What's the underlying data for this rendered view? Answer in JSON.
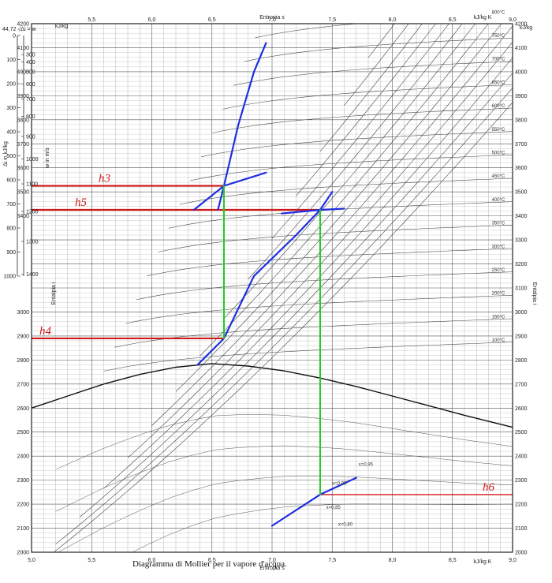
{
  "chart_data": {
    "type": "line",
    "title": "Diagramma di Mollier per il vapore d'acqua.",
    "xlabel": "Entropia s",
    "xunit": "kJ/kg K",
    "ylabel": "Entalpia i",
    "yunit": "kJ/kg",
    "left_scale_label": "Δi in kJ/kg",
    "left_scale_top": "44,72 √Δi = w",
    "velocity_label": "w in m/s",
    "xlim": [
      5.0,
      9.0
    ],
    "ylim": [
      2000,
      4200
    ],
    "x_ticks": [
      "5,0",
      "5,5",
      "6,0",
      "6,5",
      "7,0",
      "7,5",
      "8,0",
      "8,5",
      "9,0"
    ],
    "x_ticks_top": [
      "5,5",
      "6,0",
      "6,5",
      "7,0",
      "7,5",
      "8,0",
      "8,5",
      "9,0"
    ],
    "y_ticks": [
      "2000",
      "2100",
      "2200",
      "2300",
      "2400",
      "2500",
      "2600",
      "2700",
      "2800",
      "2900",
      "3000",
      "3100",
      "3200",
      "3300",
      "3400",
      "3500",
      "3600",
      "3700",
      "3800",
      "3900",
      "4000",
      "4100",
      "4200"
    ],
    "delta_i_ticks": [
      "0",
      "100",
      "200",
      "300",
      "400",
      "500",
      "600",
      "700",
      "800",
      "900",
      "1000"
    ],
    "velocity_ticks": [
      "300",
      "400",
      "500",
      "600",
      "700",
      "800",
      "900",
      "1000",
      "1100",
      "1200",
      "1300",
      "1400"
    ],
    "isotherms": [
      "100°C",
      "150°C",
      "200°C",
      "250°C",
      "300°C",
      "350°C",
      "400°C",
      "450°C",
      "500°C",
      "550°C",
      "600°C",
      "650°C",
      "700°C",
      "750°C",
      "800°C"
    ],
    "quality_lines": [
      "x=0,80",
      "x=0,85",
      "x=0,90",
      "x=0,95"
    ],
    "annotations": [
      {
        "label": "h3",
        "y": 3525
      },
      {
        "label": "h5",
        "y": 3425
      },
      {
        "label": "h4",
        "y": 2890
      },
      {
        "label": "h6",
        "y": 2240
      }
    ],
    "series": [
      {
        "color": "#1f2fe0",
        "points": [
          [
            6.55,
            3425
          ],
          [
            6.6,
            3525
          ],
          [
            6.72,
            3780
          ],
          [
            6.85,
            4000
          ],
          [
            6.95,
            4120
          ]
        ]
      },
      {
        "color": "#1f2fe0",
        "points": [
          [
            6.35,
            3425
          ],
          [
            6.6,
            3525
          ],
          [
            6.95,
            3580
          ]
        ]
      },
      {
        "color": "#1f2fe0",
        "points": [
          [
            6.38,
            2780
          ],
          [
            6.6,
            2890
          ],
          [
            6.85,
            3150
          ],
          [
            7.2,
            3320
          ],
          [
            7.4,
            3425
          ],
          [
            7.5,
            3500
          ]
        ]
      },
      {
        "color": "#1f2fe0",
        "points": [
          [
            7.08,
            3410
          ],
          [
            7.4,
            3425
          ],
          [
            7.6,
            3430
          ]
        ]
      },
      {
        "color": "#1f2fe0",
        "points": [
          [
            7.0,
            2110
          ],
          [
            7.4,
            2240
          ],
          [
            7.7,
            2310
          ]
        ]
      },
      {
        "color": "#22cc22",
        "points": [
          [
            6.6,
            3525
          ],
          [
            6.6,
            2890
          ]
        ]
      },
      {
        "color": "#22cc22",
        "points": [
          [
            7.4,
            3425
          ],
          [
            7.4,
            2240
          ]
        ]
      }
    ],
    "colors": {
      "annotation": "#d01818",
      "process": "#1f2fe0",
      "isentrope": "#22cc22",
      "grid": "#666666"
    }
  }
}
